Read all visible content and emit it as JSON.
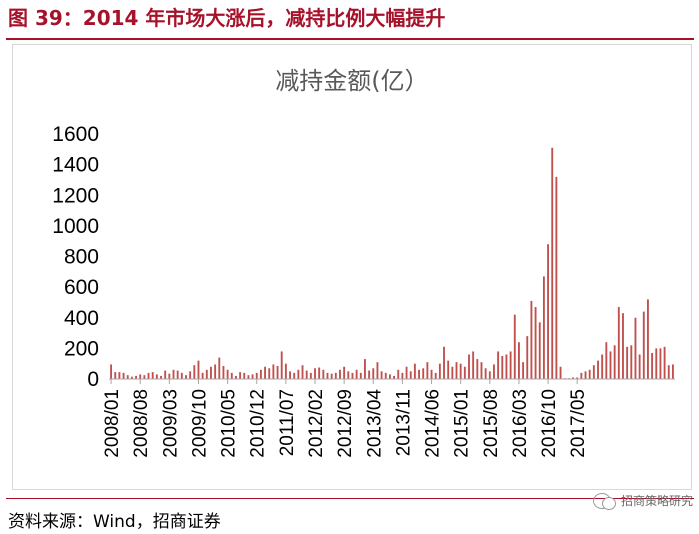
{
  "figure": {
    "title": "图 39：2014 年市场大涨后，减持比例大幅提升",
    "source": "资料来源：Wind，招商证券",
    "watermark": "招商策略研究"
  },
  "colors": {
    "accent": "#a6122a",
    "bar": "#c0504d",
    "axis": "#a6a6a6"
  },
  "chart_data": {
    "type": "bar",
    "title": "减持金额(亿）",
    "xlabel": "",
    "ylabel": "",
    "ylim": [
      0,
      1600
    ],
    "yticks": [
      0,
      200,
      400,
      600,
      800,
      1000,
      1200,
      1400,
      1600
    ],
    "grid": false,
    "legend": "none",
    "xtick_labels": [
      "2008/01",
      "2008/08",
      "2009/03",
      "2009/10",
      "2010/05",
      "2010/12",
      "2011/07",
      "2012/02",
      "2012/09",
      "2013/04",
      "2013/11",
      "2014/06",
      "2015/01",
      "2015/08",
      "2016/03",
      "2016/10",
      "2017/05"
    ],
    "start": "2008/01",
    "end": "2017/05",
    "values": [
      95,
      45,
      45,
      40,
      25,
      15,
      20,
      30,
      25,
      40,
      45,
      30,
      20,
      55,
      35,
      60,
      55,
      40,
      25,
      50,
      90,
      120,
      40,
      60,
      80,
      95,
      140,
      85,
      60,
      40,
      20,
      45,
      40,
      25,
      30,
      40,
      60,
      80,
      70,
      95,
      85,
      180,
      100,
      50,
      40,
      60,
      90,
      55,
      40,
      70,
      75,
      60,
      40,
      35,
      40,
      60,
      80,
      50,
      40,
      60,
      40,
      130,
      55,
      70,
      110,
      50,
      40,
      30,
      20,
      60,
      40,
      80,
      50,
      100,
      60,
      70,
      110,
      60,
      40,
      100,
      210,
      120,
      80,
      110,
      100,
      80,
      160,
      180,
      130,
      110,
      70,
      50,
      95,
      180,
      150,
      160,
      180,
      420,
      240,
      110,
      280,
      510,
      470,
      370,
      670,
      880,
      1510,
      1320,
      80,
      5,
      5,
      10,
      10,
      40,
      50,
      60,
      90,
      120,
      160,
      240,
      180,
      220,
      470,
      430,
      210,
      220,
      400,
      160,
      440,
      520,
      170,
      200,
      200,
      210,
      90,
      95
    ]
  }
}
